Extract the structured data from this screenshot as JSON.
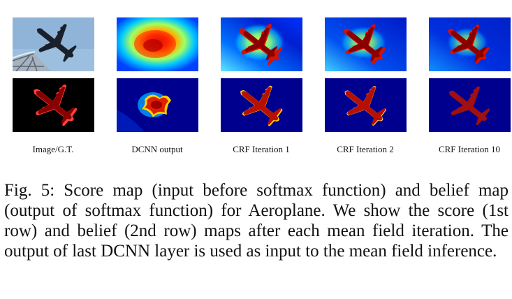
{
  "figure": {
    "column_labels": [
      "Image/G.T.",
      "DCNN output",
      "CRF Iteration 1",
      "CRF Iteration 2",
      "CRF Iteration 10"
    ],
    "row_descriptions": [
      "score map",
      "belief map"
    ]
  },
  "caption": {
    "text": "Fig. 5: Score map (input before softmax function) and belief map (output of softmax function) for Aeroplane. We show the score (1st row) and belief (2nd row) maps after each mean field iteration. The output of last DCNN layer is used as input to the mean field inference."
  },
  "colors": {
    "jet_dark_blue": "#00008f",
    "jet_blue": "#0030ff",
    "jet_cyan": "#00c8ff",
    "jet_yellow": "#ffe000",
    "jet_red": "#d81000",
    "jet_dark_red": "#8a0000",
    "gt_outline": "#ff4040",
    "sky": "#8fb4d8"
  }
}
